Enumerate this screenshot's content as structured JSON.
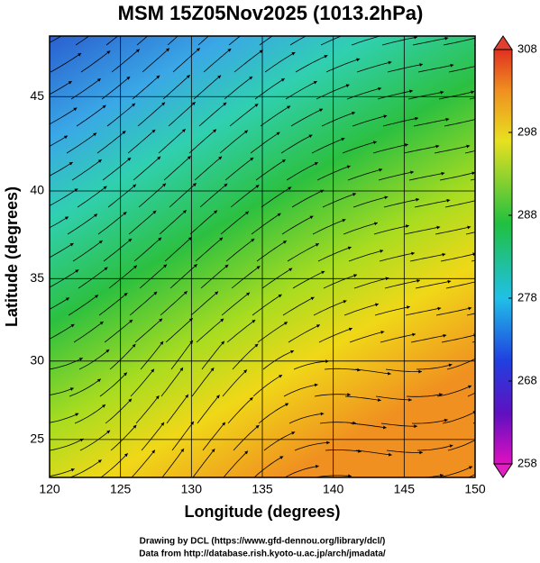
{
  "map": {
    "title": "MSM 15Z05Nov2025 (1013.2hPa)",
    "xlabel": "Longitude (degrees)",
    "ylabel": "Latitude  (degrees)",
    "xlim": [
      120,
      150
    ],
    "ylim": [
      22.5,
      48
    ],
    "xticks": [
      120,
      125,
      130,
      135,
      140,
      145,
      150
    ],
    "yticks": [
      25,
      30,
      35,
      40,
      45
    ],
    "colorbar": {
      "lim": [
        258,
        308
      ],
      "ticks": [
        258,
        268,
        278,
        288,
        298,
        308
      ]
    },
    "credits": [
      "Drawing by DCL (https://www.gfd-dennou.org/library/dcl/)",
      "Data from http://database.rish.kyoto-u.ac.jp/arch/jmadata/"
    ]
  }
}
